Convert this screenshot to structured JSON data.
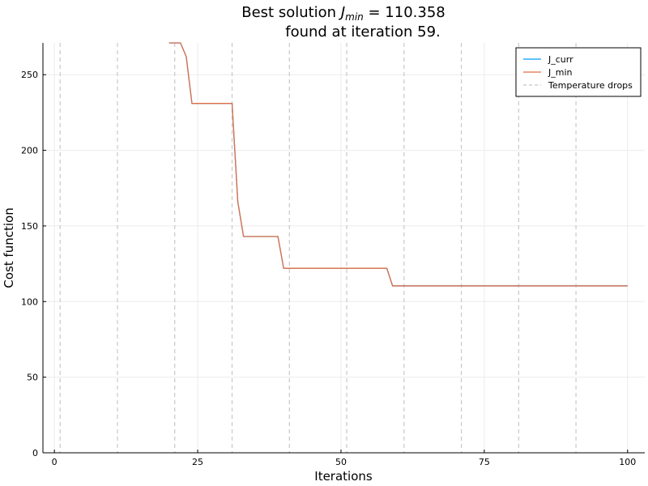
{
  "chart_data": {
    "type": "line",
    "title_line1_prefix": "Best solution ",
    "title_symbol": "J",
    "title_subscript": "min",
    "title_value": " = 110.358",
    "title_line2": "found at iteration 59.",
    "xlabel": "Iterations",
    "ylabel": "Cost function",
    "xlim": [
      -2,
      103
    ],
    "ylim": [
      0,
      271
    ],
    "xticks": [
      0,
      25,
      50,
      75,
      100
    ],
    "xtick_labels": [
      "0",
      "25",
      "50",
      "75",
      "100"
    ],
    "yticks": [
      0,
      50,
      100,
      150,
      200,
      250
    ],
    "ytick_labels": [
      "0",
      "50",
      "100",
      "150",
      "200",
      "250"
    ],
    "grid": true,
    "legend_position": "top-right",
    "series": [
      {
        "name": "J_curr",
        "color": "#009AFA",
        "x": [
          20,
          22,
          23,
          24,
          31,
          32,
          33,
          39,
          40,
          58,
          59,
          100
        ],
        "y": [
          271,
          271,
          262,
          231,
          231,
          166,
          143,
          143,
          122,
          122,
          110.358,
          110.358
        ]
      },
      {
        "name": "J_min",
        "color": "#E26F46",
        "x": [
          20,
          22,
          23,
          24,
          31,
          32,
          33,
          39,
          40,
          58,
          59,
          100
        ],
        "y": [
          271,
          271,
          262,
          231,
          231,
          166,
          143,
          143,
          122,
          122,
          110.358,
          110.358
        ]
      }
    ],
    "vlines": {
      "name": "Temperature drops",
      "color": "#C8C8C8",
      "x": [
        1,
        11,
        21,
        31,
        41,
        51,
        61,
        71,
        81,
        91
      ]
    }
  }
}
